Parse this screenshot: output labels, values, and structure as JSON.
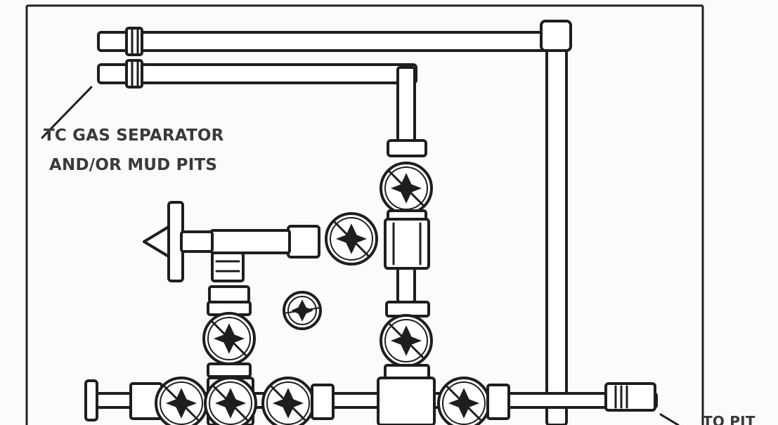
{
  "labels": {
    "gas_separator_line1": "TC GAS SEPARATOR",
    "gas_separator_line2": "AND/OR MUD PITS",
    "cut_off_right": "TO PIT"
  },
  "colors": {
    "ink": "#1e1e1e",
    "paper": "#fbfbfb",
    "text": "#3a3a3a"
  }
}
